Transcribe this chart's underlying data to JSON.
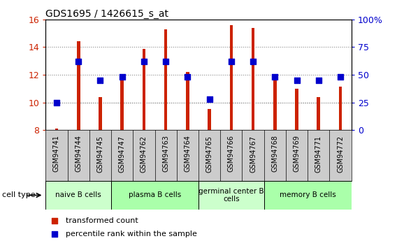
{
  "title": "GDS1695 / 1426615_s_at",
  "samples": [
    "GSM94741",
    "GSM94744",
    "GSM94745",
    "GSM94747",
    "GSM94762",
    "GSM94763",
    "GSM94764",
    "GSM94765",
    "GSM94766",
    "GSM94767",
    "GSM94768",
    "GSM94769",
    "GSM94771",
    "GSM94772"
  ],
  "transformed_count": [
    8.1,
    14.4,
    10.4,
    11.8,
    13.85,
    15.25,
    12.2,
    9.55,
    15.6,
    15.35,
    11.95,
    11.0,
    10.4,
    11.15
  ],
  "percentile_rank": [
    25,
    62,
    45,
    48,
    62,
    62,
    48,
    28,
    62,
    62,
    48,
    45,
    45,
    48
  ],
  "bar_color": "#cc2200",
  "dot_color": "#0000cc",
  "ylim_left": [
    8,
    16
  ],
  "ylim_right": [
    0,
    100
  ],
  "yticks_left": [
    8,
    10,
    12,
    14,
    16
  ],
  "yticks_right": [
    0,
    25,
    50,
    75,
    100
  ],
  "ytick_labels_right": [
    "0",
    "25",
    "50",
    "75",
    "100%"
  ],
  "grid_yticks": [
    10,
    12,
    14
  ],
  "grid_color": "#888888",
  "cell_groups": [
    {
      "label": "naive B cells",
      "start": 0,
      "end": 3,
      "color": "#ccffcc"
    },
    {
      "label": "plasma B cells",
      "start": 3,
      "end": 7,
      "color": "#aaffaa"
    },
    {
      "label": "germinal center B\ncells",
      "start": 7,
      "end": 10,
      "color": "#ccffcc"
    },
    {
      "label": "memory B cells",
      "start": 10,
      "end": 14,
      "color": "#aaffaa"
    }
  ],
  "cell_type_label": "cell type",
  "legend_items": [
    {
      "color": "#cc2200",
      "label": "transformed count"
    },
    {
      "color": "#0000cc",
      "label": "percentile rank within the sample"
    }
  ],
  "left_tick_color": "#cc2200",
  "right_tick_color": "#0000cc",
  "bar_width": 0.15,
  "dot_size": 28,
  "tick_label_bg": "#cccccc"
}
